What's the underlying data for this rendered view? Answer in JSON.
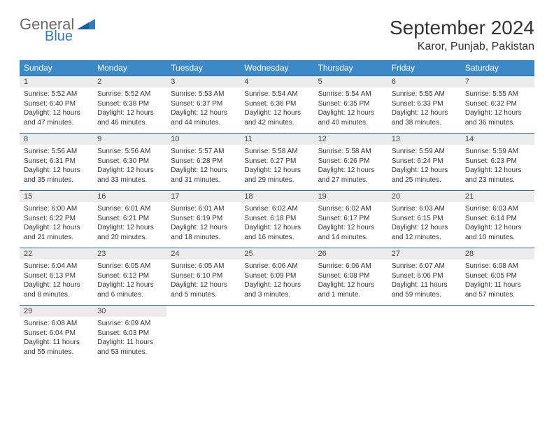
{
  "logo": {
    "word1": "General",
    "word2": "Blue"
  },
  "title": "September 2024",
  "location": "Karor, Punjab, Pakistan",
  "colors": {
    "header_bg": "#3b89c7",
    "header_text": "#ffffff",
    "daynum_bg": "#ececec",
    "row_divider": "#2d6ea8",
    "body_text": "#333333",
    "logo_gray": "#6a6a6a",
    "logo_blue": "#2d7cc0"
  },
  "fonts": {
    "family": "Arial",
    "title_pt": 28,
    "location_pt": 16,
    "header_pt": 12,
    "cell_pt": 10
  },
  "weekdays": [
    "Sunday",
    "Monday",
    "Tuesday",
    "Wednesday",
    "Thursday",
    "Friday",
    "Saturday"
  ],
  "weeks": [
    [
      {
        "n": "1",
        "sr": "Sunrise: 5:52 AM",
        "ss": "Sunset: 6:40 PM",
        "d1": "Daylight: 12 hours",
        "d2": "and 47 minutes."
      },
      {
        "n": "2",
        "sr": "Sunrise: 5:52 AM",
        "ss": "Sunset: 6:38 PM",
        "d1": "Daylight: 12 hours",
        "d2": "and 46 minutes."
      },
      {
        "n": "3",
        "sr": "Sunrise: 5:53 AM",
        "ss": "Sunset: 6:37 PM",
        "d1": "Daylight: 12 hours",
        "d2": "and 44 minutes."
      },
      {
        "n": "4",
        "sr": "Sunrise: 5:54 AM",
        "ss": "Sunset: 6:36 PM",
        "d1": "Daylight: 12 hours",
        "d2": "and 42 minutes."
      },
      {
        "n": "5",
        "sr": "Sunrise: 5:54 AM",
        "ss": "Sunset: 6:35 PM",
        "d1": "Daylight: 12 hours",
        "d2": "and 40 minutes."
      },
      {
        "n": "6",
        "sr": "Sunrise: 5:55 AM",
        "ss": "Sunset: 6:33 PM",
        "d1": "Daylight: 12 hours",
        "d2": "and 38 minutes."
      },
      {
        "n": "7",
        "sr": "Sunrise: 5:55 AM",
        "ss": "Sunset: 6:32 PM",
        "d1": "Daylight: 12 hours",
        "d2": "and 36 minutes."
      }
    ],
    [
      {
        "n": "8",
        "sr": "Sunrise: 5:56 AM",
        "ss": "Sunset: 6:31 PM",
        "d1": "Daylight: 12 hours",
        "d2": "and 35 minutes."
      },
      {
        "n": "9",
        "sr": "Sunrise: 5:56 AM",
        "ss": "Sunset: 6:30 PM",
        "d1": "Daylight: 12 hours",
        "d2": "and 33 minutes."
      },
      {
        "n": "10",
        "sr": "Sunrise: 5:57 AM",
        "ss": "Sunset: 6:28 PM",
        "d1": "Daylight: 12 hours",
        "d2": "and 31 minutes."
      },
      {
        "n": "11",
        "sr": "Sunrise: 5:58 AM",
        "ss": "Sunset: 6:27 PM",
        "d1": "Daylight: 12 hours",
        "d2": "and 29 minutes."
      },
      {
        "n": "12",
        "sr": "Sunrise: 5:58 AM",
        "ss": "Sunset: 6:26 PM",
        "d1": "Daylight: 12 hours",
        "d2": "and 27 minutes."
      },
      {
        "n": "13",
        "sr": "Sunrise: 5:59 AM",
        "ss": "Sunset: 6:24 PM",
        "d1": "Daylight: 12 hours",
        "d2": "and 25 minutes."
      },
      {
        "n": "14",
        "sr": "Sunrise: 5:59 AM",
        "ss": "Sunset: 6:23 PM",
        "d1": "Daylight: 12 hours",
        "d2": "and 23 minutes."
      }
    ],
    [
      {
        "n": "15",
        "sr": "Sunrise: 6:00 AM",
        "ss": "Sunset: 6:22 PM",
        "d1": "Daylight: 12 hours",
        "d2": "and 21 minutes."
      },
      {
        "n": "16",
        "sr": "Sunrise: 6:01 AM",
        "ss": "Sunset: 6:21 PM",
        "d1": "Daylight: 12 hours",
        "d2": "and 20 minutes."
      },
      {
        "n": "17",
        "sr": "Sunrise: 6:01 AM",
        "ss": "Sunset: 6:19 PM",
        "d1": "Daylight: 12 hours",
        "d2": "and 18 minutes."
      },
      {
        "n": "18",
        "sr": "Sunrise: 6:02 AM",
        "ss": "Sunset: 6:18 PM",
        "d1": "Daylight: 12 hours",
        "d2": "and 16 minutes."
      },
      {
        "n": "19",
        "sr": "Sunrise: 6:02 AM",
        "ss": "Sunset: 6:17 PM",
        "d1": "Daylight: 12 hours",
        "d2": "and 14 minutes."
      },
      {
        "n": "20",
        "sr": "Sunrise: 6:03 AM",
        "ss": "Sunset: 6:15 PM",
        "d1": "Daylight: 12 hours",
        "d2": "and 12 minutes."
      },
      {
        "n": "21",
        "sr": "Sunrise: 6:03 AM",
        "ss": "Sunset: 6:14 PM",
        "d1": "Daylight: 12 hours",
        "d2": "and 10 minutes."
      }
    ],
    [
      {
        "n": "22",
        "sr": "Sunrise: 6:04 AM",
        "ss": "Sunset: 6:13 PM",
        "d1": "Daylight: 12 hours",
        "d2": "and 8 minutes."
      },
      {
        "n": "23",
        "sr": "Sunrise: 6:05 AM",
        "ss": "Sunset: 6:12 PM",
        "d1": "Daylight: 12 hours",
        "d2": "and 6 minutes."
      },
      {
        "n": "24",
        "sr": "Sunrise: 6:05 AM",
        "ss": "Sunset: 6:10 PM",
        "d1": "Daylight: 12 hours",
        "d2": "and 5 minutes."
      },
      {
        "n": "25",
        "sr": "Sunrise: 6:06 AM",
        "ss": "Sunset: 6:09 PM",
        "d1": "Daylight: 12 hours",
        "d2": "and 3 minutes."
      },
      {
        "n": "26",
        "sr": "Sunrise: 6:06 AM",
        "ss": "Sunset: 6:08 PM",
        "d1": "Daylight: 12 hours",
        "d2": "and 1 minute."
      },
      {
        "n": "27",
        "sr": "Sunrise: 6:07 AM",
        "ss": "Sunset: 6:06 PM",
        "d1": "Daylight: 11 hours",
        "d2": "and 59 minutes."
      },
      {
        "n": "28",
        "sr": "Sunrise: 6:08 AM",
        "ss": "Sunset: 6:05 PM",
        "d1": "Daylight: 11 hours",
        "d2": "and 57 minutes."
      }
    ],
    [
      {
        "n": "29",
        "sr": "Sunrise: 6:08 AM",
        "ss": "Sunset: 6:04 PM",
        "d1": "Daylight: 11 hours",
        "d2": "and 55 minutes."
      },
      {
        "n": "30",
        "sr": "Sunrise: 6:09 AM",
        "ss": "Sunset: 6:03 PM",
        "d1": "Daylight: 11 hours",
        "d2": "and 53 minutes."
      },
      null,
      null,
      null,
      null,
      null
    ]
  ]
}
